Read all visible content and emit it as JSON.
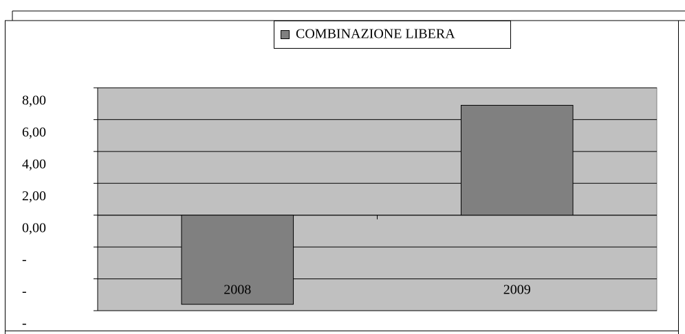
{
  "chart_data": {
    "type": "bar",
    "categories": [
      "2008",
      "2009"
    ],
    "series": [
      {
        "name": "COMBINAZIONE LIBERA",
        "color": "#808080",
        "values": [
          -5.6,
          6.9
        ]
      }
    ],
    "ylim": [
      -6,
      8
    ],
    "yticks": [
      {
        "value": -6,
        "label": "-"
      },
      {
        "value": -4,
        "label": "-"
      },
      {
        "value": -2,
        "label": "-"
      },
      {
        "value": 0,
        "label": "0,00"
      },
      {
        "value": 2,
        "label": "2,00"
      },
      {
        "value": 4,
        "label": "4,00"
      },
      {
        "value": 6,
        "label": "6,00"
      },
      {
        "value": 8,
        "label": "8,00"
      }
    ],
    "grid": true,
    "plot_background": "#c0c0c0",
    "legend": "top"
  }
}
